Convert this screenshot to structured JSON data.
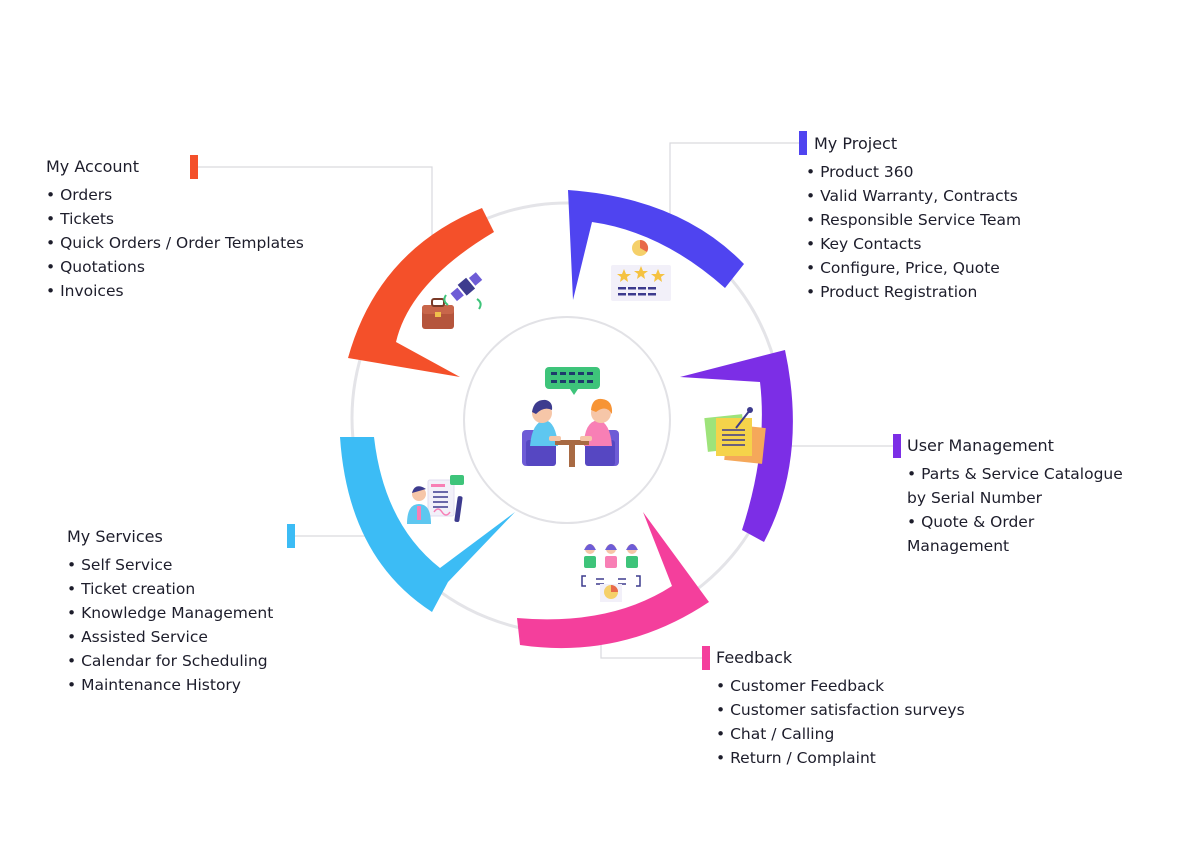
{
  "center_icon": "meeting-people-icon",
  "colors": {
    "my_account": "#f4502a",
    "my_project": "#4f44f0",
    "user_management": "#7c2ee6",
    "feedback": "#f43f9c",
    "my_services": "#3cbcf5",
    "ring": "#e4e4e8"
  },
  "sections": {
    "my_account": {
      "title": "My Account",
      "icon": "briefcase-satellite-icon",
      "items": [
        "Orders",
        "Tickets",
        "Quick Orders / Order Templates",
        "Quotations",
        "Invoices"
      ]
    },
    "my_project": {
      "title": "My Project",
      "icon": "rating-stars-icon",
      "items": [
        "Product 360",
        "Valid Warranty, Contracts",
        "Responsible Service Team",
        "Key Contacts",
        "Configure, Price, Quote",
        "Product Registration"
      ]
    },
    "user_management": {
      "title": "User Management",
      "icon": "sticky-notes-icon",
      "items": [
        "Parts & Service Catalogue",
        "by Serial Number",
        "Quote & Order",
        "Management"
      ]
    },
    "feedback": {
      "title": "Feedback",
      "icon": "team-chart-icon",
      "items": [
        "Customer Feedback",
        "Customer satisfaction surveys",
        "Chat / Calling",
        "Return / Complaint"
      ]
    },
    "my_services": {
      "title": "My Services",
      "icon": "service-agent-icon",
      "items": [
        "Self Service",
        "Ticket creation",
        "Knowledge Management",
        "Assisted Service",
        "Calendar for Scheduling",
        "Maintenance History"
      ]
    }
  }
}
